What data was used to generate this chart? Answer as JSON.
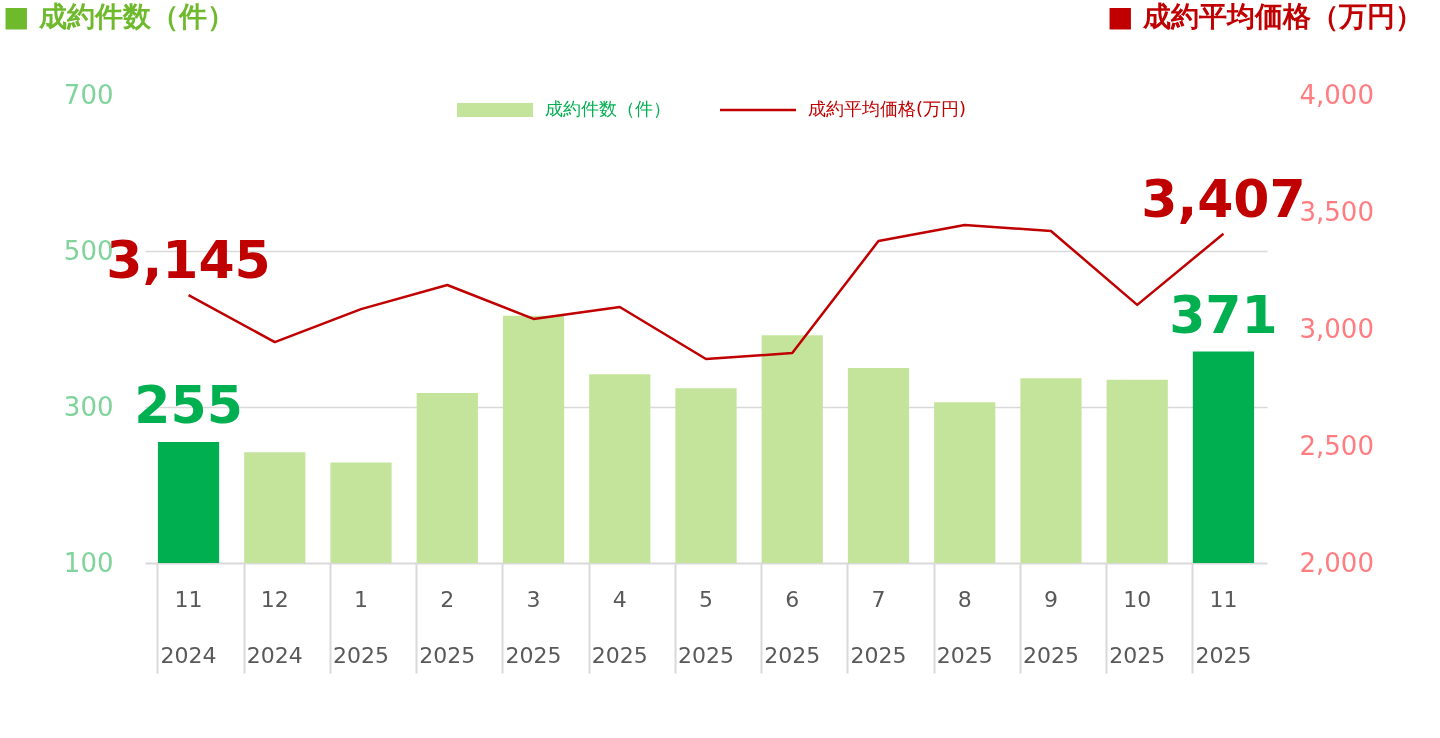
{
  "chart_data": {
    "type": "bar",
    "ylabel": "■ 成約件数（件）",
    "y2label": "■ 成約平均価格（万円）",
    "categories": [
      "11\n2024",
      "12\n2024",
      "1\n2025",
      "2\n2025",
      "3\n2025",
      "4\n2025",
      "5\n2025",
      "6\n2025",
      "7\n2025",
      "8\n2025",
      "9\n2025",
      "10\n2025",
      "11\n2025"
    ],
    "series": [
      {
        "name": "成約件数（件）",
        "color": "#c5e49b",
        "colors": [
          "#00b050",
          "#c5e49b",
          "#c5e49b",
          "#c5e49b",
          "#c5e49b",
          "#c5e49b",
          "#c5e49b",
          "#c5e49b",
          "#c5e49b",
          "#c5e49b",
          "#c5e49b",
          "#c5e49b",
          "#00b050"
        ],
        "values": [
          255,
          242,
          229,
          318,
          417,
          342,
          324,
          392,
          350,
          306,
          337,
          335,
          371
        ],
        "value_labels": [
          "255",
          null,
          null,
          null,
          null,
          null,
          null,
          null,
          null,
          null,
          null,
          null,
          "371"
        ]
      },
      {
        "name": "成約平均価格(万円)",
        "type": "line",
        "axis": "y2",
        "color": "#c00000",
        "values": [
          3145,
          2944,
          3085,
          3188,
          3043,
          3094,
          2872,
          2897,
          3376,
          3444,
          3419,
          3103,
          3407
        ],
        "value_labels": [
          "3,145",
          null,
          null,
          null,
          null,
          null,
          null,
          null,
          null,
          null,
          null,
          null,
          "3,407"
        ]
      }
    ],
    "ylim": [
      100,
      700
    ],
    "yticks": [
      100,
      300,
      500,
      700
    ],
    "y2lim": [
      2000,
      4000
    ],
    "y2ticks": [
      {
        "value": 2000,
        "label": "2,000"
      },
      {
        "value": 2500,
        "label": "2,500"
      },
      {
        "value": 3000,
        "label": "3,000"
      },
      {
        "value": 3500,
        "label": "3,500"
      },
      {
        "value": 4000,
        "label": "4,000"
      }
    ],
    "grid": "y",
    "legend": "top"
  }
}
